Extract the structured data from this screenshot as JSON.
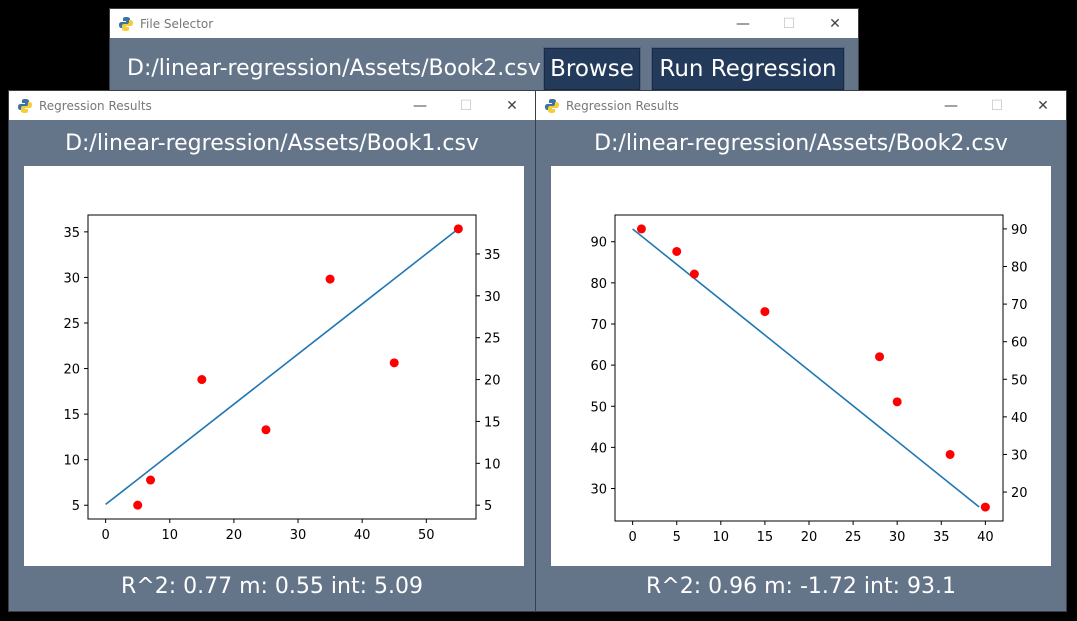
{
  "file_selector": {
    "title": "File Selector",
    "path": "D:/linear-regression/Assets/Book2.csv",
    "browse_label": "Browse",
    "run_label": "Run Regression"
  },
  "results_left": {
    "title": "Regression Results",
    "path": "D:/linear-regression/Assets/Book1.csv",
    "stats": "R^2: 0.77 m: 0.55 int: 5.09"
  },
  "results_right": {
    "title": "Regression Results",
    "path": "D:/linear-regression/Assets/Book2.csv",
    "stats": "R^2: 0.96 m: -1.72 int: 93.1"
  },
  "chart_data": [
    {
      "type": "scatter",
      "x": [
        5,
        7,
        15,
        25,
        35,
        45,
        55
      ],
      "y": [
        5,
        8,
        20,
        14,
        32,
        22,
        38
      ],
      "fit_line": {
        "x": [
          0,
          55
        ],
        "y": [
          5.09,
          35.34
        ]
      },
      "xlim": [
        -2.75,
        57.75
      ],
      "ylim_left": [
        3.49,
        36.85
      ],
      "ylim_right": [
        3.35,
        39.65
      ],
      "xticks": [
        0,
        10,
        20,
        30,
        40,
        50
      ],
      "yticks_left": [
        5,
        10,
        15,
        20,
        25,
        30,
        35
      ],
      "yticks_right": [
        5,
        10,
        15,
        20,
        25,
        30,
        35
      ],
      "point_color": "#ff0000",
      "line_color": "#1f77b4"
    },
    {
      "type": "scatter",
      "x": [
        1,
        5,
        7,
        15,
        28,
        30,
        36,
        40
      ],
      "y": [
        90,
        84,
        78,
        68,
        56,
        44,
        30,
        16
      ],
      "fit_line": {
        "x": [
          0,
          39.3
        ],
        "y": [
          93.1,
          25.5
        ]
      },
      "xlim": [
        -2,
        42
      ],
      "ylim_left": [
        22.1,
        96.5
      ],
      "ylim_right": [
        12.3,
        93.7
      ],
      "xticks": [
        0,
        5,
        10,
        15,
        20,
        25,
        30,
        35,
        40
      ],
      "yticks_left": [
        30,
        40,
        50,
        60,
        70,
        80,
        90
      ],
      "yticks_right": [
        20,
        30,
        40,
        50,
        60,
        70,
        80,
        90
      ],
      "point_color": "#ff0000",
      "line_color": "#1f77b4"
    }
  ]
}
